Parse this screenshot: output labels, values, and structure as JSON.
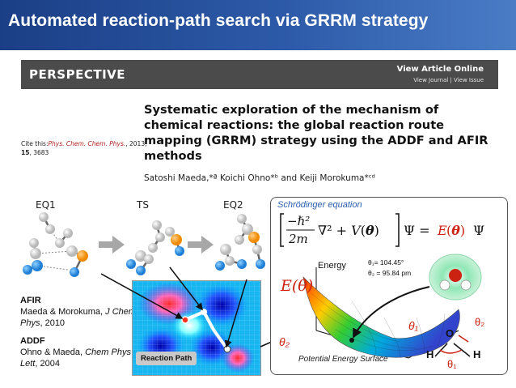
{
  "slide": {
    "title": "Automated reaction-path search via GRRM strategy"
  },
  "paper": {
    "section": "PERSPECTIVE",
    "view_online": "View Article Online",
    "view_journal": "View Journal | View Issue",
    "cite_prefix": "Cite this:",
    "cite_journal": "Phys. Chem. Chem. Phys.",
    "cite_year": ", 2013,",
    "cite_volume": "15",
    "cite_pages": ", 3683",
    "title": "Systematic exploration of the mechanism of chemical reactions: the global reaction route mapping (GRRM) strategy using the ADDF and AFIR methods",
    "authors": "Satoshi Maeda,*ª Koichi Ohno*ᵇ and Keiji Morokuma*ᶜᵈ"
  },
  "molecules": {
    "labels": [
      "EQ1",
      "TS",
      "EQ2"
    ]
  },
  "references": [
    {
      "method": "AFIR",
      "authors": "Maeda & Morokuma, ",
      "journal": "J Chem Phys",
      "year": ", 2010"
    },
    {
      "method": "ADDF",
      "authors": "Ohno & Maeda, ",
      "journal": "Chem Phys Lett",
      "year": ", 2004"
    }
  ],
  "pes_inset": {
    "label": "Reaction Path"
  },
  "panel": {
    "heading": "Schrödinger equation",
    "energy_label": "Energy",
    "energy_symbol": "E(θ)",
    "theta1_value": "θ₁= 104.45°",
    "theta2_value": "θ₂ = 95.84 pm",
    "axis_theta1": "θ₁",
    "axis_theta2": "θ₂",
    "surface_label": "Potential Energy Surface",
    "atom_O": "O",
    "atom_H_left": "H",
    "atom_H_right": "H",
    "angle_theta1": "θ₁",
    "angle_theta2": "θ₂"
  },
  "colors": {
    "header_bg": "#2d5aa8",
    "band_bg": "#4b4b4b",
    "accent_red": "#cc2211",
    "accent_blue": "#2b5fb0"
  }
}
